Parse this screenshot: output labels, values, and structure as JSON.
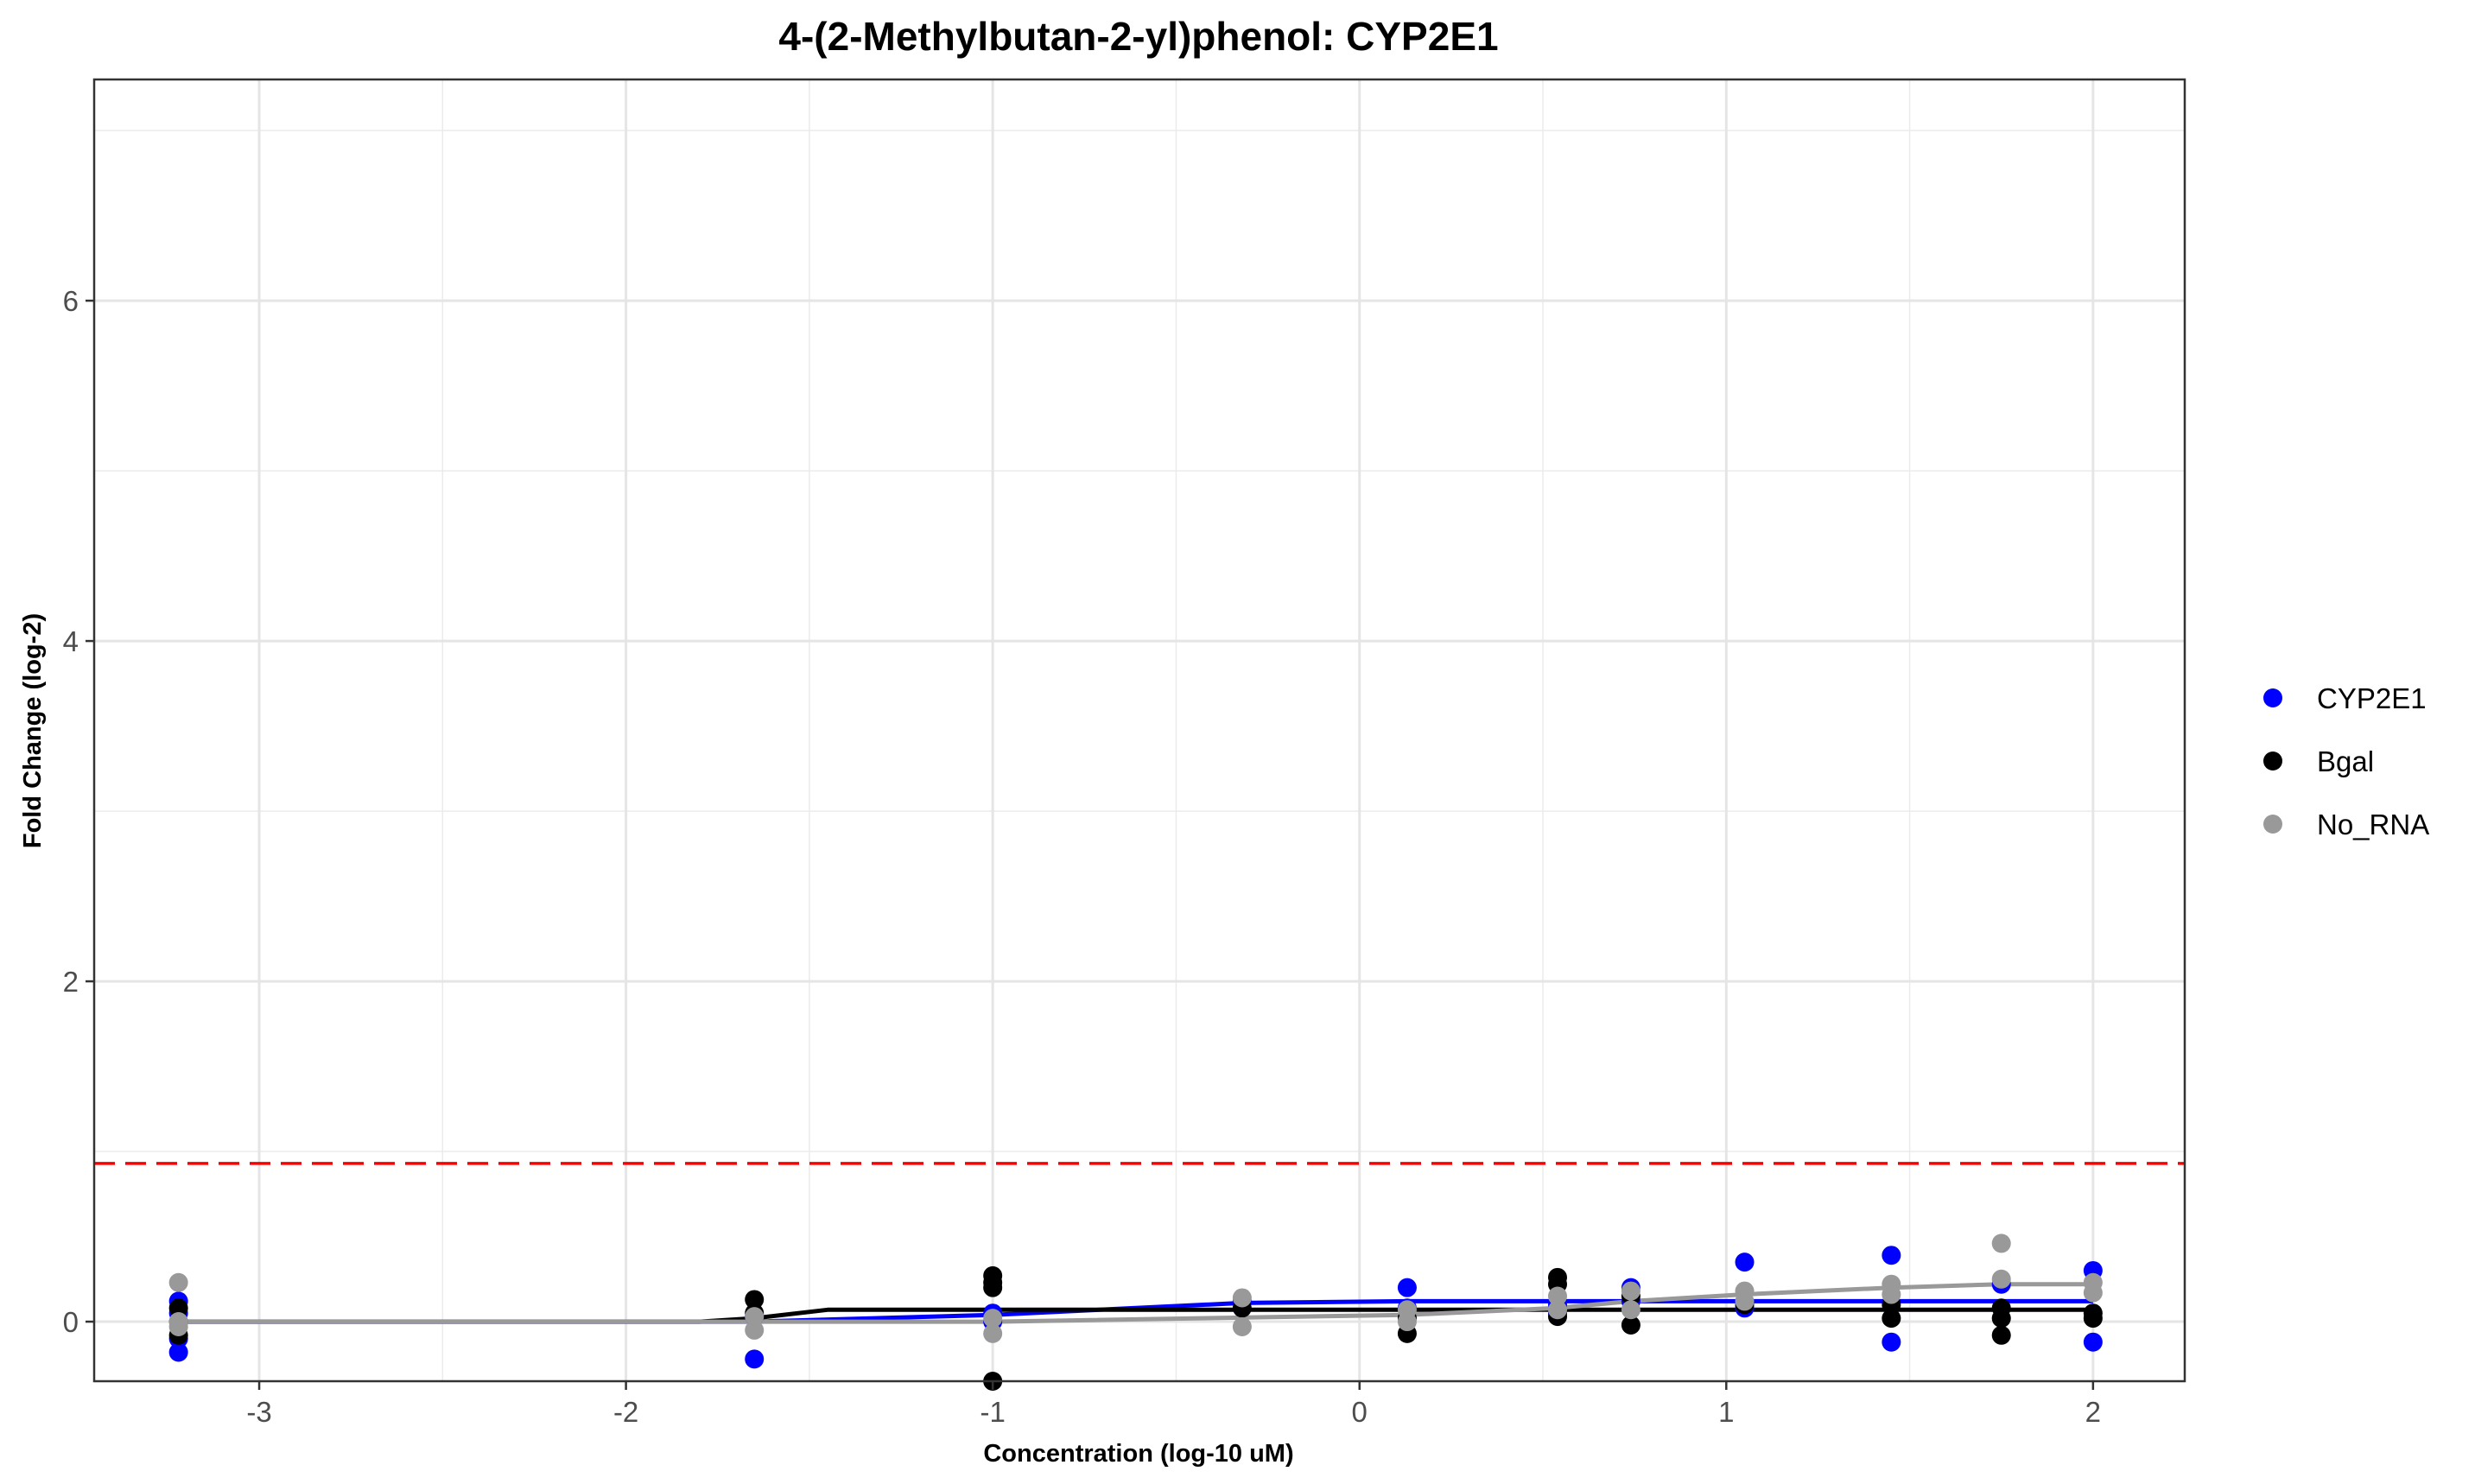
{
  "chart_data": {
    "type": "scatter",
    "title": "4-(2-Methylbutan-2-yl)phenol: CYP2E1",
    "xlabel": "Concentration (log-10 uM)",
    "ylabel": "Fold Change (log-2)",
    "xlim": [
      -3.45,
      2.25
    ],
    "ylim": [
      -0.35,
      7.3
    ],
    "x_ticks": [
      -3,
      -2,
      -1,
      0,
      1,
      2
    ],
    "y_ticks": [
      0,
      2,
      4,
      6
    ],
    "x_tick_labels": [
      "-3",
      "-2",
      "-1",
      "0",
      "1",
      "2"
    ],
    "y_tick_labels": [
      "0",
      "2",
      "4",
      "6"
    ],
    "grid": true,
    "legend_position": "right",
    "threshold": {
      "y": 0.93,
      "color": "#ff0000",
      "style": "dashed"
    },
    "series": [
      {
        "name": "CYP2E1",
        "color": "#0000ff",
        "points": [
          [
            -3.22,
            0.12
          ],
          [
            -3.22,
            0.05
          ],
          [
            -3.22,
            -0.1
          ],
          [
            -3.22,
            -0.18
          ],
          [
            -1.65,
            -0.22
          ],
          [
            -1.65,
            0.03
          ],
          [
            -1.0,
            0.05
          ],
          [
            -1.0,
            0.0
          ],
          [
            -0.32,
            0.12
          ],
          [
            0.13,
            0.2
          ],
          [
            0.13,
            0.08
          ],
          [
            0.54,
            0.1
          ],
          [
            0.54,
            0.05
          ],
          [
            0.74,
            0.2
          ],
          [
            0.74,
            0.12
          ],
          [
            1.05,
            0.35
          ],
          [
            1.05,
            0.08
          ],
          [
            1.45,
            0.39
          ],
          [
            1.45,
            -0.12
          ],
          [
            1.75,
            0.22
          ],
          [
            2.0,
            0.3
          ],
          [
            2.0,
            -0.12
          ]
        ],
        "fit": [
          [
            -3.22,
            0.0
          ],
          [
            -1.65,
            0.0
          ],
          [
            -1.0,
            0.04
          ],
          [
            -0.32,
            0.11
          ],
          [
            0.13,
            0.12
          ],
          [
            0.54,
            0.12
          ],
          [
            1.05,
            0.12
          ],
          [
            1.45,
            0.12
          ],
          [
            2.0,
            0.12
          ]
        ]
      },
      {
        "name": "Bgal",
        "color": "#000000",
        "points": [
          [
            -3.22,
            0.08
          ],
          [
            -3.22,
            0.0
          ],
          [
            -3.22,
            -0.08
          ],
          [
            -1.65,
            0.13
          ],
          [
            -1.65,
            0.05
          ],
          [
            -1.0,
            0.27
          ],
          [
            -1.0,
            0.23
          ],
          [
            -1.0,
            0.2
          ],
          [
            -1.0,
            -0.35
          ],
          [
            -0.32,
            0.08
          ],
          [
            0.13,
            -0.07
          ],
          [
            0.13,
            0.02
          ],
          [
            0.54,
            0.26
          ],
          [
            0.54,
            0.22
          ],
          [
            0.54,
            0.03
          ],
          [
            0.74,
            -0.02
          ],
          [
            0.74,
            0.15
          ],
          [
            1.05,
            0.1
          ],
          [
            1.45,
            0.02
          ],
          [
            1.45,
            0.1
          ],
          [
            1.75,
            0.08
          ],
          [
            1.75,
            -0.08
          ],
          [
            1.75,
            0.02
          ],
          [
            2.0,
            0.02
          ],
          [
            2.0,
            0.05
          ]
        ],
        "fit": [
          [
            -3.22,
            0.0
          ],
          [
            -1.8,
            0.0
          ],
          [
            -1.65,
            0.02
          ],
          [
            -1.45,
            0.07
          ],
          [
            -1.0,
            0.07
          ],
          [
            2.0,
            0.07
          ]
        ]
      },
      {
        "name": "No_RNA",
        "color": "#999999",
        "points": [
          [
            -3.22,
            0.23
          ],
          [
            -3.22,
            0.0
          ],
          [
            -3.22,
            -0.03
          ],
          [
            -1.65,
            0.03
          ],
          [
            -1.65,
            -0.05
          ],
          [
            -1.0,
            -0.07
          ],
          [
            -1.0,
            0.02
          ],
          [
            -0.32,
            0.14
          ],
          [
            -0.32,
            -0.03
          ],
          [
            0.13,
            0.0
          ],
          [
            0.13,
            0.07
          ],
          [
            0.54,
            0.15
          ],
          [
            0.54,
            0.07
          ],
          [
            0.74,
            0.18
          ],
          [
            0.74,
            0.07
          ],
          [
            1.05,
            0.18
          ],
          [
            1.05,
            0.12
          ],
          [
            1.45,
            0.22
          ],
          [
            1.45,
            0.16
          ],
          [
            1.75,
            0.46
          ],
          [
            1.75,
            0.25
          ],
          [
            2.0,
            0.23
          ],
          [
            2.0,
            0.17
          ]
        ],
        "fit": [
          [
            -3.22,
            0.0
          ],
          [
            -1.0,
            0.0
          ],
          [
            0.13,
            0.04
          ],
          [
            0.54,
            0.08
          ],
          [
            0.74,
            0.12
          ],
          [
            1.05,
            0.16
          ],
          [
            1.45,
            0.2
          ],
          [
            1.75,
            0.22
          ],
          [
            2.0,
            0.22
          ]
        ]
      }
    ]
  }
}
